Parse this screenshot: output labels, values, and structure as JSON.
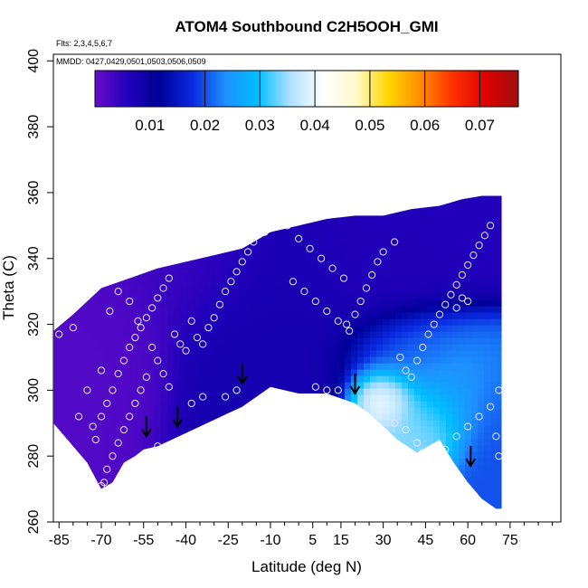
{
  "chart_data": {
    "type": "heatmap",
    "title": "ATOM4 Southbound C2H5OOH_GMI",
    "notes": {
      "flights": "Flts: 2,3,4,5,6,7",
      "dates": "MMDD: 0427,0429,0501,0503,0506,0509"
    },
    "xlabel": "Latitude (deg N)",
    "ylabel": "Theta (C)",
    "xlim": [
      -87,
      93
    ],
    "ylim": [
      260,
      402
    ],
    "x_ticks": [
      -85,
      -70,
      -55,
      -40,
      -25,
      -10,
      5,
      15,
      30,
      45,
      60,
      75
    ],
    "x_tick_labels": [
      "-85",
      "-70",
      "-55",
      "-40",
      "-25",
      "-10",
      "5",
      "15",
      "30",
      "45",
      "60",
      "75"
    ],
    "y_ticks": [
      260,
      280,
      300,
      320,
      340,
      360,
      380,
      400
    ],
    "y_tick_labels": [
      "260",
      "280",
      "300",
      "320",
      "340",
      "360",
      "380",
      "400"
    ],
    "colorbar": {
      "range": [
        0,
        0.077
      ],
      "ticks": [
        0.01,
        0.02,
        0.03,
        0.04,
        0.05,
        0.06,
        0.07
      ],
      "tick_labels": [
        "0.01",
        "0.02",
        "0.03",
        "0.04",
        "0.05",
        "0.06",
        "0.07"
      ],
      "colors": [
        "#6a0dcc",
        "#2200bb",
        "#00009a",
        "#0a2ae0",
        "#1e90ff",
        "#00bfff",
        "#b0e0ff",
        "#ffffff",
        "#fffacd",
        "#ffd700",
        "#ff8c00",
        "#ff3000",
        "#dd0000",
        "#a01010"
      ]
    },
    "domain": {
      "top": [
        [
          -87,
          318
        ],
        [
          -80,
          323
        ],
        [
          -70,
          331
        ],
        [
          -60,
          334
        ],
        [
          -50,
          337
        ],
        [
          -40,
          339
        ],
        [
          -30,
          341
        ],
        [
          -20,
          343
        ],
        [
          -10,
          348
        ],
        [
          0,
          350
        ],
        [
          10,
          352
        ],
        [
          20,
          353
        ],
        [
          30,
          353
        ],
        [
          40,
          355
        ],
        [
          50,
          356
        ],
        [
          58,
          358
        ],
        [
          65,
          359
        ],
        [
          70,
          359
        ]
      ],
      "bottom": [
        [
          -87,
          290
        ],
        [
          -80,
          283
        ],
        [
          -75,
          278
        ],
        [
          -70,
          270
        ],
        [
          -66,
          272
        ],
        [
          -62,
          278
        ],
        [
          -58,
          280
        ],
        [
          -55,
          282
        ],
        [
          -50,
          283
        ],
        [
          -45,
          285
        ],
        [
          -40,
          287
        ],
        [
          -30,
          291
        ],
        [
          -20,
          295
        ],
        [
          -10,
          301
        ],
        [
          0,
          299
        ],
        [
          10,
          299
        ],
        [
          20,
          296
        ],
        [
          25,
          293
        ],
        [
          30,
          289
        ],
        [
          35,
          285
        ],
        [
          42,
          281
        ],
        [
          50,
          285
        ],
        [
          55,
          278
        ],
        [
          60,
          272
        ],
        [
          65,
          267
        ],
        [
          70,
          264
        ],
        [
          72,
          264
        ]
      ],
      "right_edge_lat": 72
    },
    "field_blobs": [
      {
        "lat": -75,
        "theta": 320,
        "value": 0.002,
        "sigma_lat": 22,
        "sigma_theta": 25
      },
      {
        "lat": -40,
        "theta": 338,
        "value": 0.004,
        "sigma_lat": 25,
        "sigma_theta": 15
      },
      {
        "lat": -10,
        "theta": 320,
        "value": 0.008,
        "sigma_lat": 25,
        "sigma_theta": 30
      },
      {
        "lat": 25,
        "theta": 340,
        "value": 0.006,
        "sigma_lat": 25,
        "sigma_theta": 20
      },
      {
        "lat": 30,
        "theta": 298,
        "value": 0.043,
        "sigma_lat": 9,
        "sigma_theta": 7
      },
      {
        "lat": 45,
        "theta": 290,
        "value": 0.035,
        "sigma_lat": 12,
        "sigma_theta": 10
      },
      {
        "lat": 55,
        "theta": 300,
        "value": 0.025,
        "sigma_lat": 15,
        "sigma_theta": 12
      },
      {
        "lat": 40,
        "theta": 312,
        "value": 0.022,
        "sigma_lat": 18,
        "sigma_theta": 10
      },
      {
        "lat": 68,
        "theta": 285,
        "value": 0.02,
        "sigma_lat": 10,
        "sigma_theta": 18
      }
    ],
    "arrows": [
      {
        "lat": -54,
        "theta": 286
      },
      {
        "lat": -43,
        "theta": 289
      },
      {
        "lat": -20,
        "theta": 302
      },
      {
        "lat": 20,
        "theta": 299
      },
      {
        "lat": 61,
        "theta": 277
      }
    ],
    "samples": [
      [
        -85,
        317
      ],
      [
        -80,
        319
      ],
      [
        -75,
        300
      ],
      [
        -78,
        292
      ],
      [
        -73,
        289
      ],
      [
        -70,
        292
      ],
      [
        -68,
        296
      ],
      [
        -66,
        300
      ],
      [
        -64,
        305
      ],
      [
        -62,
        309
      ],
      [
        -60,
        313
      ],
      [
        -58,
        316
      ],
      [
        -56,
        319
      ],
      [
        -54,
        322
      ],
      [
        -52,
        325
      ],
      [
        -50,
        328
      ],
      [
        -48,
        331
      ],
      [
        -46,
        334
      ],
      [
        -52,
        313
      ],
      [
        -50,
        309
      ],
      [
        -48,
        305
      ],
      [
        -46,
        301
      ],
      [
        -54,
        304
      ],
      [
        -56,
        300
      ],
      [
        -58,
        296
      ],
      [
        -60,
        292
      ],
      [
        -62,
        288
      ],
      [
        -64,
        284
      ],
      [
        -66,
        280
      ],
      [
        -68,
        276
      ],
      [
        -69,
        272
      ],
      [
        -70,
        271
      ],
      [
        -72,
        285
      ],
      [
        -70,
        306
      ],
      [
        -67,
        324
      ],
      [
        -64,
        330
      ],
      [
        -60,
        327
      ],
      [
        -57,
        321
      ],
      [
        -44,
        317
      ],
      [
        -42,
        314
      ],
      [
        -40,
        312
      ],
      [
        -38,
        321
      ],
      [
        -36,
        316
      ],
      [
        -34,
        314
      ],
      [
        -32,
        319
      ],
      [
        -30,
        322
      ],
      [
        -28,
        326
      ],
      [
        -26,
        330
      ],
      [
        -24,
        333
      ],
      [
        -22,
        336
      ],
      [
        -20,
        339
      ],
      [
        -18,
        342
      ],
      [
        -16,
        345
      ],
      [
        -12,
        348
      ],
      [
        -8,
        351
      ],
      [
        -4,
        350
      ],
      [
        0,
        346
      ],
      [
        4,
        343
      ],
      [
        8,
        340
      ],
      [
        12,
        337
      ],
      [
        16,
        334
      ],
      [
        -2,
        333
      ],
      [
        2,
        330
      ],
      [
        6,
        327
      ],
      [
        10,
        324
      ],
      [
        14,
        321
      ],
      [
        18,
        318
      ],
      [
        6,
        301
      ],
      [
        10,
        300
      ],
      [
        14,
        300
      ],
      [
        17,
        320
      ],
      [
        20,
        323
      ],
      [
        22,
        327
      ],
      [
        24,
        331
      ],
      [
        26,
        335
      ],
      [
        28,
        339
      ],
      [
        30,
        342
      ],
      [
        34,
        345
      ],
      [
        36,
        310
      ],
      [
        38,
        306
      ],
      [
        40,
        304
      ],
      [
        42,
        309
      ],
      [
        44,
        313
      ],
      [
        46,
        317
      ],
      [
        48,
        320
      ],
      [
        50,
        323
      ],
      [
        52,
        326
      ],
      [
        54,
        329
      ],
      [
        56,
        332
      ],
      [
        58,
        335
      ],
      [
        60,
        338
      ],
      [
        62,
        341
      ],
      [
        64,
        344
      ],
      [
        66,
        347
      ],
      [
        68,
        350
      ],
      [
        44,
        281
      ],
      [
        48,
        279
      ],
      [
        52,
        282
      ],
      [
        56,
        286
      ],
      [
        60,
        289
      ],
      [
        64,
        292
      ],
      [
        68,
        295
      ],
      [
        70,
        286
      ],
      [
        71,
        280
      ],
      [
        71,
        300
      ],
      [
        60,
        327
      ],
      [
        58,
        328
      ],
      [
        56,
        325
      ],
      [
        34,
        290
      ],
      [
        38,
        288
      ],
      [
        42,
        284
      ],
      [
        -41,
        277
      ],
      [
        -46,
        280
      ],
      [
        -50,
        283
      ],
      [
        -38,
        296
      ],
      [
        -34,
        298
      ],
      [
        -26,
        298
      ],
      [
        -22,
        300
      ]
    ]
  }
}
